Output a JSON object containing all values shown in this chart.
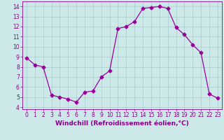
{
  "x": [
    0,
    1,
    2,
    3,
    4,
    5,
    6,
    7,
    8,
    9,
    10,
    11,
    12,
    13,
    14,
    15,
    16,
    17,
    18,
    19,
    20,
    21,
    22,
    23
  ],
  "y": [
    8.9,
    8.2,
    8.0,
    5.2,
    5.0,
    4.8,
    4.5,
    5.5,
    5.6,
    7.0,
    7.6,
    11.8,
    12.0,
    12.5,
    13.8,
    13.9,
    14.0,
    13.8,
    11.9,
    11.2,
    10.2,
    9.4,
    5.3,
    4.9
  ],
  "line_color": "#990099",
  "marker": "D",
  "marker_size": 2.5,
  "bg_color": "#cce8e8",
  "grid_color": "#aacccc",
  "xlabel": "Windchill (Refroidissement éolien,°C)",
  "xlim": [
    -0.5,
    23.5
  ],
  "ylim": [
    3.8,
    14.5
  ],
  "yticks": [
    4,
    5,
    6,
    7,
    8,
    9,
    10,
    11,
    12,
    13,
    14
  ],
  "xticks": [
    0,
    1,
    2,
    3,
    4,
    5,
    6,
    7,
    8,
    9,
    10,
    11,
    12,
    13,
    14,
    15,
    16,
    17,
    18,
    19,
    20,
    21,
    22,
    23
  ],
  "tick_fontsize": 5.5,
  "xlabel_fontsize": 6.5,
  "label_color": "#880088"
}
